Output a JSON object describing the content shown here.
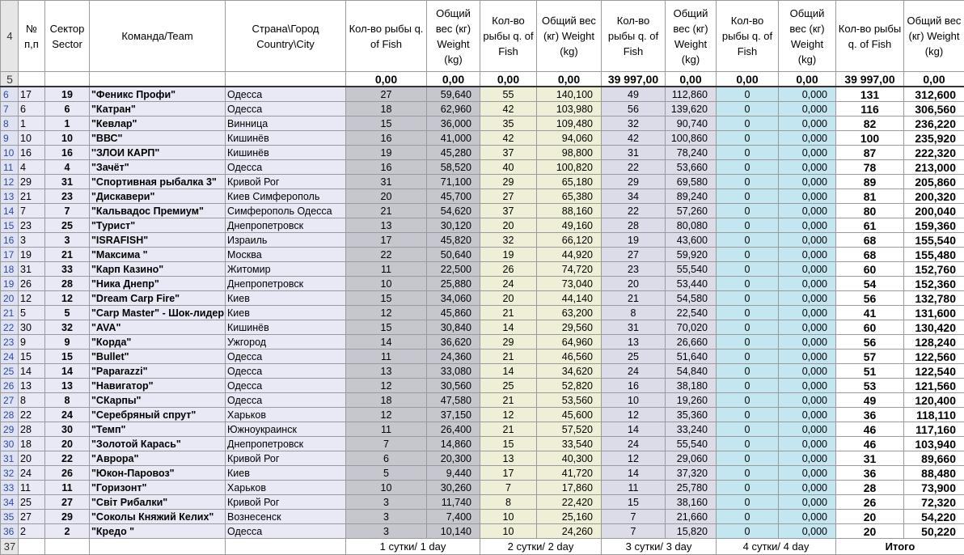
{
  "row_numbers": [
    "4",
    "5",
    "6",
    "7",
    "8",
    "9",
    "10",
    "11",
    "12",
    "13",
    "14",
    "15",
    "16",
    "17",
    "18",
    "19",
    "20",
    "21",
    "22",
    "23",
    "24",
    "25",
    "26",
    "27",
    "28",
    "29",
    "30",
    "31",
    "32",
    "33",
    "34",
    "35",
    "36",
    "37"
  ],
  "header": [
    "№ п,п",
    "Сектор Sector",
    "Команда/Team",
    "Страна\\Город Country\\City",
    "Кол-во рыбы q. of Fish",
    "Общий вес (кг) Weight (kg)",
    "Кол-во рыбы q. of Fish",
    "Общий вес (кг) Weight (kg)",
    "Кол-во рыбы q. of Fish",
    "Общий вес (кг) Weight (kg)",
    "Кол-во рыбы q. of Fish",
    "Общий вес (кг) Weight (kg)",
    "Кол-во рыбы q. of Fish",
    "Общий вес (кг) Weight (kg)"
  ],
  "totals": [
    "0,00",
    "0,00",
    "0,00",
    "0,00",
    "39 997,00",
    "0,00",
    "0,00",
    "0,00",
    "39 997,00",
    "0,00"
  ],
  "rows": [
    [
      "17",
      "19",
      "\"Феникс Профи\"",
      "Одесса",
      "27",
      "59,640",
      "55",
      "140,100",
      "49",
      "112,860",
      "0",
      "0,000",
      "131",
      "312,600"
    ],
    [
      "6",
      "6",
      "\"Катран\"",
      "Одесса",
      "18",
      "62,960",
      "42",
      "103,980",
      "56",
      "139,620",
      "0",
      "0,000",
      "116",
      "306,560"
    ],
    [
      "1",
      "1",
      "\"Кевлар\"",
      "Винница",
      "15",
      "36,000",
      "35",
      "109,480",
      "32",
      "90,740",
      "0",
      "0,000",
      "82",
      "236,220"
    ],
    [
      "10",
      "10",
      "\"ВВС\"",
      "Кишинёв",
      "16",
      "41,000",
      "42",
      "94,060",
      "42",
      "100,860",
      "0",
      "0,000",
      "100",
      "235,920"
    ],
    [
      "16",
      "16",
      "''ЗЛОИ КАРП\"",
      "Кишинёв",
      "19",
      "45,280",
      "37",
      "98,800",
      "31",
      "78,240",
      "0",
      "0,000",
      "87",
      "222,320"
    ],
    [
      "4",
      "4",
      "\"Зачёт\"",
      "Одесса",
      "16",
      "58,520",
      "40",
      "100,820",
      "22",
      "53,660",
      "0",
      "0,000",
      "78",
      "213,000"
    ],
    [
      "29",
      "31",
      "\"Спортивная рыбалка 3\"",
      "Кривой Рог",
      "31",
      "71,100",
      "29",
      "65,180",
      "29",
      "69,580",
      "0",
      "0,000",
      "89",
      "205,860"
    ],
    [
      "21",
      "23",
      "\"Дискавери\"",
      "Киев Симферополь",
      "20",
      "45,700",
      "27",
      "65,380",
      "34",
      "89,240",
      "0",
      "0,000",
      "81",
      "200,320"
    ],
    [
      "7",
      "7",
      "\"Кальвадос Премиум\"",
      "Симферополь Одесса",
      "21",
      "54,620",
      "37",
      "88,160",
      "22",
      "57,260",
      "0",
      "0,000",
      "80",
      "200,040"
    ],
    [
      "23",
      "25",
      "\"Турист\"",
      "Днепропетровск",
      "13",
      "30,120",
      "20",
      "49,160",
      "28",
      "80,080",
      "0",
      "0,000",
      "61",
      "159,360"
    ],
    [
      "3",
      "3",
      "\"ISRAFISH\"",
      "Израиль",
      "17",
      "45,820",
      "32",
      "66,120",
      "19",
      "43,600",
      "0",
      "0,000",
      "68",
      "155,540"
    ],
    [
      "19",
      "21",
      "\"Максима \"",
      "Москва",
      "22",
      "50,640",
      "19",
      "44,920",
      "27",
      "59,920",
      "0",
      "0,000",
      "68",
      "155,480"
    ],
    [
      "31",
      "33",
      "\"Карп Казино\"",
      "Житомир",
      "11",
      "22,500",
      "26",
      "74,720",
      "23",
      "55,540",
      "0",
      "0,000",
      "60",
      "152,760"
    ],
    [
      "26",
      "28",
      "\"Ника Днепр\"",
      "Днепропетровск",
      "10",
      "25,880",
      "24",
      "73,040",
      "20",
      "53,440",
      "0",
      "0,000",
      "54",
      "152,360"
    ],
    [
      "12",
      "12",
      "\"Dream Carp Fire\"",
      "Киев",
      "15",
      "34,060",
      "20",
      "44,140",
      "21",
      "54,580",
      "0",
      "0,000",
      "56",
      "132,780"
    ],
    [
      "5",
      "5",
      "\"Carp Master\" - Шок-лидер",
      "Киев",
      "12",
      "45,860",
      "21",
      "63,200",
      "8",
      "22,540",
      "0",
      "0,000",
      "41",
      "131,600"
    ],
    [
      "30",
      "32",
      "\"AVA\"",
      "Кишинёв",
      "15",
      "30,840",
      "14",
      "29,560",
      "31",
      "70,020",
      "0",
      "0,000",
      "60",
      "130,420"
    ],
    [
      "9",
      "9",
      "\"Корда\"",
      "Ужгород",
      "14",
      "36,620",
      "29",
      "64,960",
      "13",
      "26,660",
      "0",
      "0,000",
      "56",
      "128,240"
    ],
    [
      "15",
      "15",
      "\"Bullet\"",
      "Одесса",
      "11",
      "24,360",
      "21",
      "46,560",
      "25",
      "51,640",
      "0",
      "0,000",
      "57",
      "122,560"
    ],
    [
      "14",
      "14",
      "\"Paparazzi\"",
      "Одесса",
      "13",
      "33,080",
      "14",
      "34,620",
      "24",
      "54,840",
      "0",
      "0,000",
      "51",
      "122,540"
    ],
    [
      "13",
      "13",
      "\"Навигатор\"",
      "Одесса",
      "12",
      "30,560",
      "25",
      "52,820",
      "16",
      "38,180",
      "0",
      "0,000",
      "53",
      "121,560"
    ],
    [
      "8",
      "8",
      "\"СКарпы\"",
      "Одесса",
      "18",
      "47,580",
      "21",
      "53,560",
      "10",
      "19,260",
      "0",
      "0,000",
      "49",
      "120,400"
    ],
    [
      "22",
      "24",
      "\"Серебряный спрут\"",
      "Харьков",
      "12",
      "37,150",
      "12",
      "45,600",
      "12",
      "35,360",
      "0",
      "0,000",
      "36",
      "118,110"
    ],
    [
      "28",
      "30",
      "\"Темп\"",
      "Южноукраинск",
      "11",
      "26,400",
      "21",
      "57,520",
      "14",
      "33,240",
      "0",
      "0,000",
      "46",
      "117,160"
    ],
    [
      "18",
      "20",
      "\"Золотой Карась\"",
      "Днепропетровск",
      "7",
      "14,860",
      "15",
      "33,540",
      "24",
      "55,540",
      "0",
      "0,000",
      "46",
      "103,940"
    ],
    [
      "20",
      "22",
      "\"Аврора\"",
      "Кривой Рог",
      "6",
      "20,300",
      "13",
      "40,300",
      "12",
      "29,060",
      "0",
      "0,000",
      "31",
      "89,660"
    ],
    [
      "24",
      "26",
      "\"Юкон-Паровоз\"",
      "Киев",
      "5",
      "9,440",
      "17",
      "41,720",
      "14",
      "37,320",
      "0",
      "0,000",
      "36",
      "88,480"
    ],
    [
      "11",
      "11",
      "\"Горизонт\"",
      "Харьков",
      "10",
      "30,260",
      "7",
      "17,860",
      "11",
      "25,780",
      "0",
      "0,000",
      "28",
      "73,900"
    ],
    [
      "25",
      "27",
      "\"Світ Рибалки\"",
      "Кривой Рог",
      "3",
      "11,740",
      "8",
      "22,420",
      "15",
      "38,160",
      "0",
      "0,000",
      "26",
      "72,320"
    ],
    [
      "27",
      "29",
      "\"Соколы Княжий Келих\"",
      "Вознесенск",
      "3",
      "7,400",
      "10",
      "25,160",
      "7",
      "21,660",
      "0",
      "0,000",
      "20",
      "54,220"
    ],
    [
      "2",
      "2",
      "\"Кредо \"",
      "Одесса",
      "3",
      "10,140",
      "10",
      "24,260",
      "7",
      "15,820",
      "0",
      "0,000",
      "20",
      "50,220"
    ]
  ],
  "footer": [
    "1 сутки/ 1 day",
    "2 сутки/ 2 day",
    "3 сутки/ 3 day",
    "4 сутки/ 4 day",
    "Итого"
  ]
}
